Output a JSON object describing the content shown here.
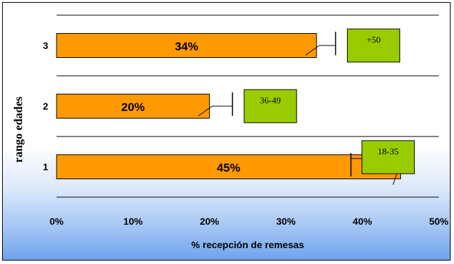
{
  "chart_data": {
    "type": "bar",
    "orientation": "horizontal",
    "categories": [
      "1",
      "2",
      "3"
    ],
    "values": [
      45,
      20,
      34
    ],
    "value_labels": [
      "45%",
      "20%",
      "34%"
    ],
    "annotations": [
      "18-35",
      "36-49",
      "+50"
    ],
    "error_values": [
      38.5,
      23,
      36.5
    ],
    "xlabel": "% recepción de remesas",
    "ylabel": "rango edades",
    "xlim": [
      0,
      50
    ],
    "x_ticks": [
      0,
      10,
      20,
      30,
      40,
      50
    ],
    "x_tick_labels": [
      "0%",
      "10%",
      "20%",
      "30%",
      "40%",
      "50%"
    ],
    "grid": true,
    "legend": "none",
    "colors": {
      "bar": "#ff9900",
      "annotation_box": "#99cc00",
      "background_bottom": "#6fa3ee"
    }
  }
}
